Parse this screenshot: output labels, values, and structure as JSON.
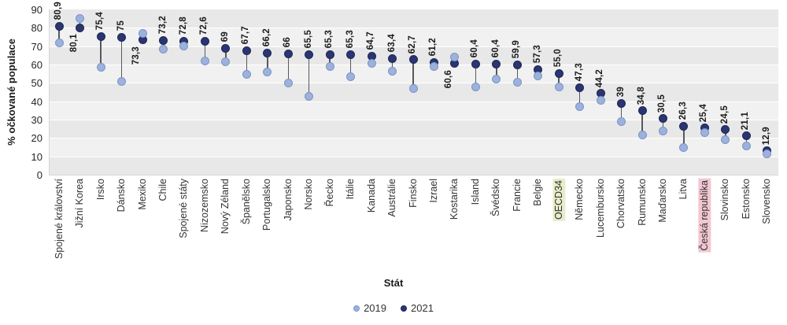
{
  "chart_data": {
    "type": "dumbbell",
    "title": "",
    "xlabel": "Stát",
    "ylabel": "% očkované populace",
    "ylim": [
      0,
      90
    ],
    "y_ticks": [
      0,
      10,
      20,
      30,
      40,
      50,
      60,
      70,
      80,
      90
    ],
    "grid": "horizontal-bands",
    "legend_position": "bottom",
    "categories": [
      "Spojené království",
      "Jižní Korea",
      "Irsko",
      "Dánsko",
      "Mexiko",
      "Chile",
      "Spojené státy",
      "Nizozemsko",
      "Nový Zéland",
      "Španělsko",
      "Portugalsko",
      "Japonsko",
      "Norsko",
      "Řecko",
      "Itálie",
      "Kanada",
      "Austrálie",
      "Finsko",
      "Izrael",
      "Kostarika",
      "Island",
      "Švédsko",
      "Francie",
      "Belgie",
      "OECD34",
      "Německo",
      "Lucembursko",
      "Chorvatsko",
      "Rumunsko",
      "Maďarsko",
      "Litva",
      "Česká republika",
      "Slovinsko",
      "Estonsko",
      "Slovensko"
    ],
    "series": [
      {
        "name": "2019",
        "color": "#9cb2dc",
        "border_color": "#7d94c6",
        "values": [
          72,
          85,
          58.5,
          51,
          77,
          68.5,
          70,
          62,
          61.5,
          54.5,
          56,
          50,
          42.5,
          59,
          53.5,
          60.5,
          56.5,
          47,
          59,
          64,
          48,
          52,
          50.5,
          54,
          48,
          37,
          40.5,
          29,
          21.5,
          24,
          15,
          23,
          19,
          15.5,
          11.5
        ]
      },
      {
        "name": "2021",
        "color": "#2a3572",
        "border_color": "#1c2655",
        "values": [
          80.9,
          80.1,
          75.4,
          75,
          73.3,
          73.2,
          72.8,
          72.6,
          69,
          67.7,
          66.2,
          66,
          65.5,
          65.3,
          65.3,
          64.7,
          63.4,
          62.7,
          61.2,
          60.6,
          60.4,
          60.4,
          59.9,
          57.3,
          55.0,
          47.3,
          44.2,
          39,
          34.8,
          30.5,
          26.3,
          25.4,
          24.5,
          21.1,
          12.9
        ],
        "data_labels": [
          "80,9",
          "80,1",
          "75,4",
          "75",
          "73,3",
          "73,2",
          "72,8",
          "72,6",
          "69",
          "67,7",
          "66,2",
          "66",
          "65,5",
          "65,3",
          "65,3",
          "64,7",
          "63,4",
          "62,7",
          "61,2",
          "60,6",
          "60,4",
          "60,4",
          "59,9",
          "57,3",
          "55,0",
          "47,3",
          "44,2",
          "39",
          "34,8",
          "30,5",
          "26,3",
          "25,4",
          "24,5",
          "21,1",
          "12,9"
        ],
        "label_below": [
          false,
          true,
          false,
          false,
          true,
          false,
          false,
          false,
          false,
          false,
          false,
          false,
          false,
          false,
          false,
          false,
          false,
          false,
          false,
          true,
          false,
          false,
          false,
          false,
          false,
          false,
          false,
          false,
          false,
          false,
          false,
          false,
          false,
          false,
          false
        ]
      }
    ],
    "connector_color": "#58595b",
    "band_colors": [
      "#e8e8e8",
      "#f1f1f1"
    ],
    "highlights": [
      {
        "category": "OECD34",
        "color": "#e9ecca"
      },
      {
        "category": "Česká republika",
        "color": "#f2c7d2"
      }
    ]
  }
}
